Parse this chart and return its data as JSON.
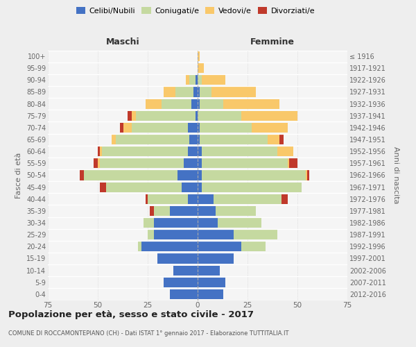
{
  "age_groups": [
    "0-4",
    "5-9",
    "10-14",
    "15-19",
    "20-24",
    "25-29",
    "30-34",
    "35-39",
    "40-44",
    "45-49",
    "50-54",
    "55-59",
    "60-64",
    "65-69",
    "70-74",
    "75-79",
    "80-84",
    "85-89",
    "90-94",
    "95-99",
    "100+"
  ],
  "birth_years": [
    "2012-2016",
    "2007-2011",
    "2002-2006",
    "1997-2001",
    "1992-1996",
    "1987-1991",
    "1982-1986",
    "1977-1981",
    "1972-1976",
    "1967-1971",
    "1962-1966",
    "1957-1961",
    "1952-1956",
    "1947-1951",
    "1942-1946",
    "1937-1941",
    "1932-1936",
    "1927-1931",
    "1922-1926",
    "1917-1921",
    "≤ 1916"
  ],
  "maschi": {
    "celibi": [
      14,
      17,
      12,
      20,
      28,
      22,
      22,
      14,
      5,
      8,
      10,
      7,
      5,
      4,
      5,
      1,
      3,
      2,
      1,
      0,
      0
    ],
    "coniugati": [
      0,
      0,
      0,
      0,
      2,
      3,
      5,
      8,
      20,
      38,
      47,
      42,
      43,
      37,
      28,
      30,
      15,
      9,
      3,
      0,
      0
    ],
    "vedovi": [
      0,
      0,
      0,
      0,
      0,
      0,
      0,
      0,
      0,
      0,
      0,
      1,
      1,
      2,
      4,
      2,
      8,
      6,
      2,
      0,
      0
    ],
    "divorziati": [
      0,
      0,
      0,
      0,
      0,
      0,
      0,
      2,
      1,
      3,
      2,
      2,
      1,
      0,
      2,
      2,
      0,
      0,
      0,
      0,
      0
    ]
  },
  "femmine": {
    "celibi": [
      13,
      14,
      11,
      18,
      22,
      18,
      10,
      9,
      8,
      2,
      2,
      2,
      2,
      1,
      1,
      0,
      1,
      1,
      0,
      0,
      0
    ],
    "coniugati": [
      0,
      0,
      0,
      0,
      12,
      22,
      22,
      20,
      34,
      50,
      52,
      43,
      38,
      34,
      26,
      22,
      12,
      6,
      2,
      0,
      0
    ],
    "vedovi": [
      0,
      0,
      0,
      0,
      0,
      0,
      0,
      0,
      0,
      0,
      1,
      1,
      8,
      6,
      18,
      28,
      28,
      22,
      12,
      3,
      1
    ],
    "divorziati": [
      0,
      0,
      0,
      0,
      0,
      0,
      0,
      0,
      3,
      0,
      1,
      4,
      0,
      2,
      0,
      0,
      0,
      0,
      0,
      0,
      0
    ]
  },
  "colors": {
    "celibi": "#4472C4",
    "coniugati": "#c5d9a0",
    "vedovi": "#f9c86a",
    "divorziati": "#c0392b"
  },
  "legend_labels": [
    "Celibi/Nubili",
    "Coniugati/e",
    "Vedovi/e",
    "Divorziati/e"
  ],
  "title": "Popolazione per età, sesso e stato civile - 2017",
  "subtitle": "COMUNE DI ROCCAMONTEPIANO (CH) - Dati ISTAT 1° gennaio 2017 - Elaborazione TUTTITALIA.IT",
  "xlabel_left": "Maschi",
  "xlabel_right": "Femmine",
  "ylabel_left": "Fasce di età",
  "ylabel_right": "Anni di nascita",
  "xlim": 75,
  "bg_color": "#eeeeee",
  "plot_bg": "#f5f5f5"
}
